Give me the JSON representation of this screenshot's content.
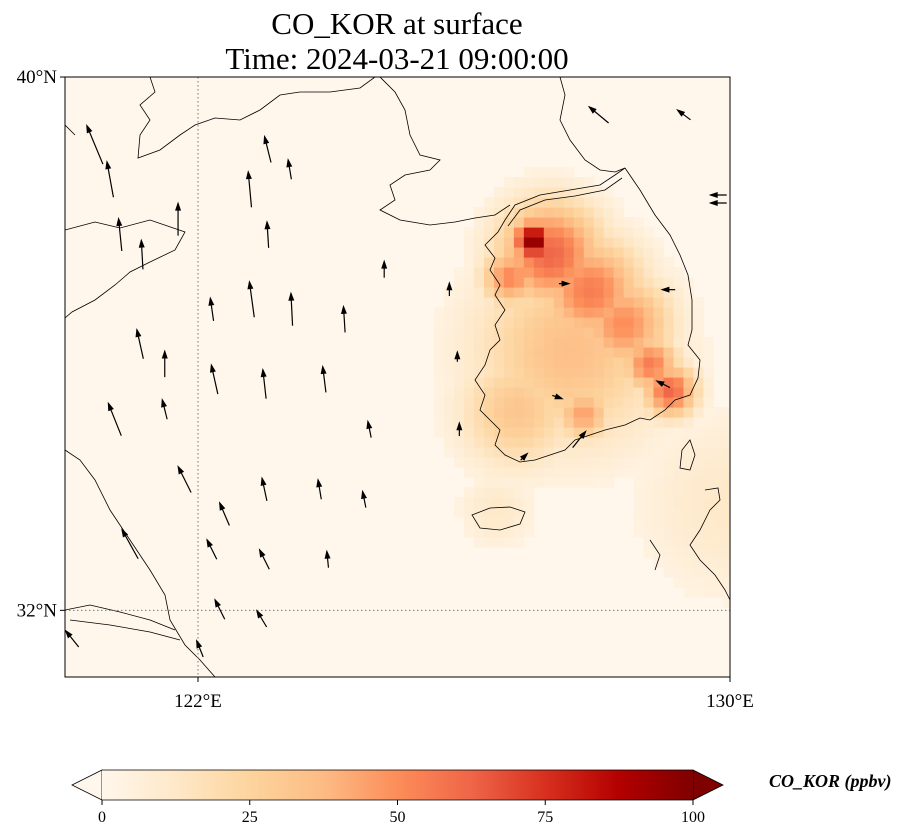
{
  "chart_data": {
    "type": "heatmap",
    "title": "CO_KOR at surface",
    "subtitle": "Time: 2024-03-21 09:00:00",
    "variable": "CO_KOR",
    "units": "ppbv",
    "colorbar_label": "CO_KOR (ppbv)",
    "colormap": "OrRd",
    "colorbar_ticks": [
      "0",
      "25",
      "50",
      "75",
      "100"
    ],
    "vmin": 0,
    "vmax": 100,
    "colorbar_extend": "both",
    "lon_range": [
      120,
      130
    ],
    "lat_range": [
      31,
      40
    ],
    "x_ticks": [
      {
        "value": 122,
        "label": "122°E"
      },
      {
        "value": 130,
        "label": "130°E"
      }
    ],
    "y_ticks": [
      {
        "value": 40,
        "label": "40°N"
      },
      {
        "value": 32,
        "label": "32°N"
      }
    ],
    "gridlines": {
      "lon": [
        122
      ],
      "lat": [
        32
      ],
      "style": "dotted"
    },
    "background_value": 3,
    "concentration_blobs": [
      {
        "lon": 127.05,
        "lat": 37.55,
        "value": 100,
        "spread_deg": 0.22
      },
      {
        "lon": 127.3,
        "lat": 37.35,
        "value": 62,
        "spread_deg": 0.55
      },
      {
        "lon": 127.9,
        "lat": 36.8,
        "value": 55,
        "spread_deg": 0.55
      },
      {
        "lon": 128.4,
        "lat": 36.3,
        "value": 50,
        "spread_deg": 0.5
      },
      {
        "lon": 128.8,
        "lat": 35.7,
        "value": 55,
        "spread_deg": 0.3
      },
      {
        "lon": 129.1,
        "lat": 35.3,
        "value": 62,
        "spread_deg": 0.28
      },
      {
        "lon": 126.8,
        "lat": 35.0,
        "value": 32,
        "spread_deg": 0.6
      },
      {
        "lon": 127.8,
        "lat": 34.95,
        "value": 45,
        "spread_deg": 0.28
      },
      {
        "lon": 127.6,
        "lat": 35.9,
        "value": 35,
        "spread_deg": 1.0
      },
      {
        "lon": 126.7,
        "lat": 37.0,
        "value": 52,
        "spread_deg": 0.3
      },
      {
        "lon": 126.5,
        "lat": 33.5,
        "value": 12,
        "spread_deg": 0.4
      },
      {
        "lon": 130.0,
        "lat": 33.6,
        "value": 12,
        "spread_deg": 1.0
      }
    ],
    "wind_vectors": [
      [
        120.45,
        38.98,
        -0.5,
        1.2
      ],
      [
        120.68,
        38.46,
        -0.2,
        1.1
      ],
      [
        120.83,
        37.63,
        -0.1,
        1.0
      ],
      [
        121.16,
        37.33,
        -0.05,
        0.9
      ],
      [
        121.7,
        37.86,
        0,
        1.0
      ],
      [
        122.78,
        38.31,
        -0.1,
        1.1
      ],
      [
        123.05,
        37.63,
        -0.05,
        0.8
      ],
      [
        123.05,
        38.91,
        -0.2,
        0.8
      ],
      [
        123.38,
        38.61,
        -0.1,
        0.6
      ],
      [
        122.21,
        36.51,
        -0.1,
        0.7
      ],
      [
        122.81,
        36.66,
        -0.15,
        1.1
      ],
      [
        123.41,
        36.51,
        -0.05,
        1.0
      ],
      [
        124.2,
        36.36,
        -0.05,
        0.8
      ],
      [
        121.13,
        35.99,
        -0.2,
        0.9
      ],
      [
        121.5,
        35.69,
        0,
        0.8
      ],
      [
        122.25,
        35.46,
        -0.2,
        0.9
      ],
      [
        123.0,
        35.39,
        -0.1,
        0.9
      ],
      [
        123.9,
        35.46,
        -0.1,
        0.8
      ],
      [
        120.75,
        34.86,
        -0.4,
        1.0
      ],
      [
        121.5,
        35.01,
        -0.15,
        0.6
      ],
      [
        121.8,
        33.96,
        -0.4,
        0.8
      ],
      [
        122.4,
        33.44,
        -0.3,
        0.7
      ],
      [
        123.0,
        33.81,
        -0.15,
        0.7
      ],
      [
        123.83,
        33.81,
        -0.1,
        0.6
      ],
      [
        124.5,
        33.66,
        -0.1,
        0.5
      ],
      [
        120.98,
        32.99,
        -0.5,
        0.9
      ],
      [
        122.21,
        32.91,
        -0.3,
        0.6
      ],
      [
        123.0,
        32.76,
        -0.3,
        0.6
      ],
      [
        123.95,
        32.76,
        -0.05,
        0.5
      ],
      [
        122.33,
        32.01,
        -0.3,
        0.6
      ],
      [
        122.96,
        31.87,
        -0.3,
        0.5
      ],
      [
        122.03,
        31.42,
        -0.2,
        0.5
      ],
      [
        120.11,
        31.57,
        -0.4,
        0.5
      ],
      [
        124.58,
        34.71,
        -0.1,
        0.5
      ],
      [
        124.8,
        37.11,
        0,
        0.5
      ],
      [
        125.78,
        36.81,
        0,
        0.4
      ],
      [
        128.03,
        39.43,
        -0.6,
        0.5
      ],
      [
        129.31,
        39.43,
        -0.4,
        0.3
      ],
      [
        129.83,
        38.23,
        -0.5,
        0
      ],
      [
        129.83,
        38.11,
        -0.5,
        0
      ],
      [
        125.93,
        34.71,
        0,
        0.4
      ],
      [
        127.73,
        34.56,
        0.4,
        0.5
      ],
      [
        129.0,
        35.39,
        -0.4,
        0.2
      ],
      [
        127.5,
        36.9,
        0.3,
        0
      ],
      [
        129.08,
        36.81,
        -0.4,
        0
      ],
      [
        127.4,
        35.2,
        0.3,
        -0.1
      ],
      [
        125.9,
        35.8,
        0,
        0.3
      ],
      [
        126.9,
        34.3,
        0.2,
        0.2
      ]
    ]
  }
}
